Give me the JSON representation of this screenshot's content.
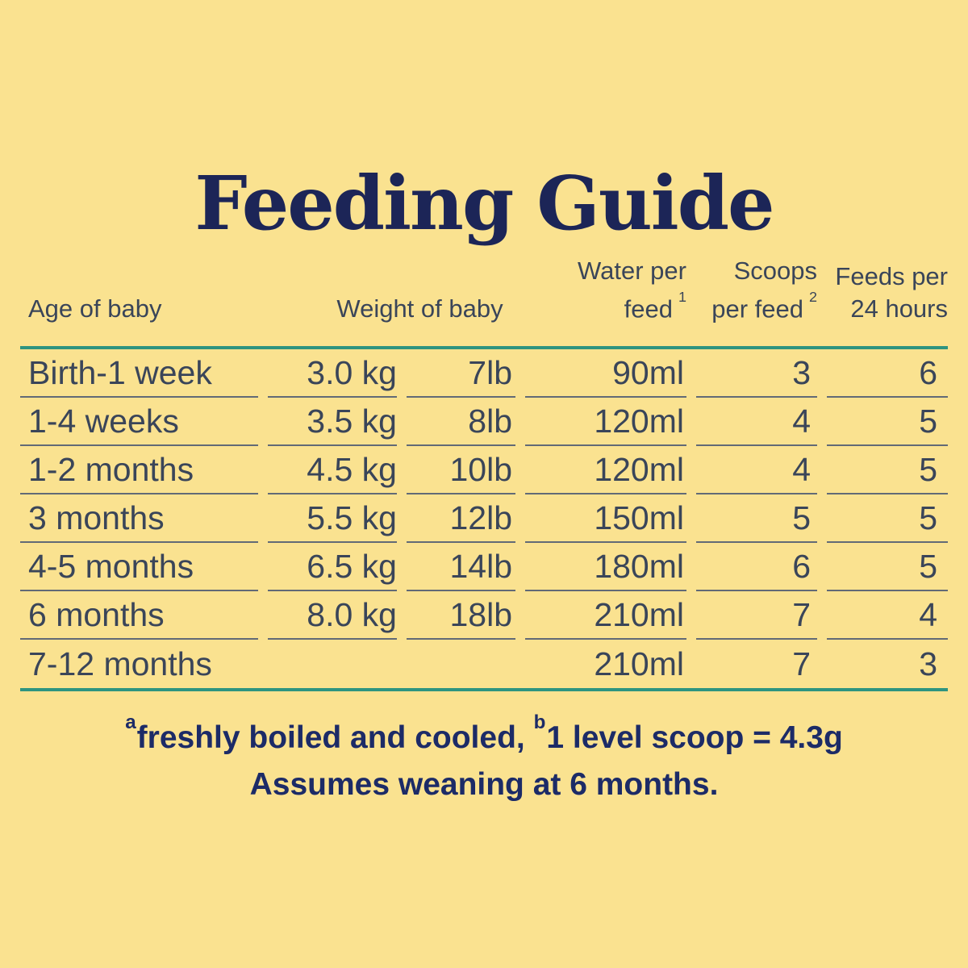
{
  "title": "Feeding Guide",
  "table": {
    "headers": {
      "age": "Age of baby",
      "weight": "Weight of baby",
      "water": {
        "line1": "Water per",
        "line2": "feed",
        "sup": "1"
      },
      "scoops": {
        "line1": "Scoops",
        "line2": "per feed",
        "sup": "2"
      },
      "feeds": {
        "line1": "Feeds per",
        "line2": "24 hours"
      }
    },
    "rows": [
      {
        "age": "Birth-1 week",
        "kg": "3.0 kg",
        "lb": "7lb",
        "water": "90ml",
        "scoops": "3",
        "feeds": "6"
      },
      {
        "age": "1-4 weeks",
        "kg": "3.5 kg",
        "lb": "8lb",
        "water": "120ml",
        "scoops": "4",
        "feeds": "5"
      },
      {
        "age": "1-2 months",
        "kg": "4.5 kg",
        "lb": "10lb",
        "water": "120ml",
        "scoops": "4",
        "feeds": "5"
      },
      {
        "age": "3 months",
        "kg": "5.5 kg",
        "lb": "12lb",
        "water": "150ml",
        "scoops": "5",
        "feeds": "5"
      },
      {
        "age": "4-5 months",
        "kg": "6.5 kg",
        "lb": "14lb",
        "water": "180ml",
        "scoops": "6",
        "feeds": "5"
      },
      {
        "age": "6 months",
        "kg": "8.0 kg",
        "lb": "18lb",
        "water": "210ml",
        "scoops": "7",
        "feeds": "4"
      },
      {
        "age": "7-12 months",
        "kg": "",
        "lb": "",
        "water": "210ml",
        "scoops": "7",
        "feeds": "3"
      }
    ]
  },
  "footnotes": {
    "line1": {
      "sup_a": "a",
      "text_a": "freshly boiled and cooled, ",
      "sup_b": "b",
      "text_b": "1 level scoop = 4.3g"
    },
    "line2": "Assumes weaning at 6 months."
  },
  "colors": {
    "background": "#FAE290",
    "title_navy": "#1C2557",
    "table_text": "#3A4559",
    "teal_rule": "#2E9480",
    "row_rule": "#515D73",
    "footnote_navy": "#1C2B67"
  }
}
